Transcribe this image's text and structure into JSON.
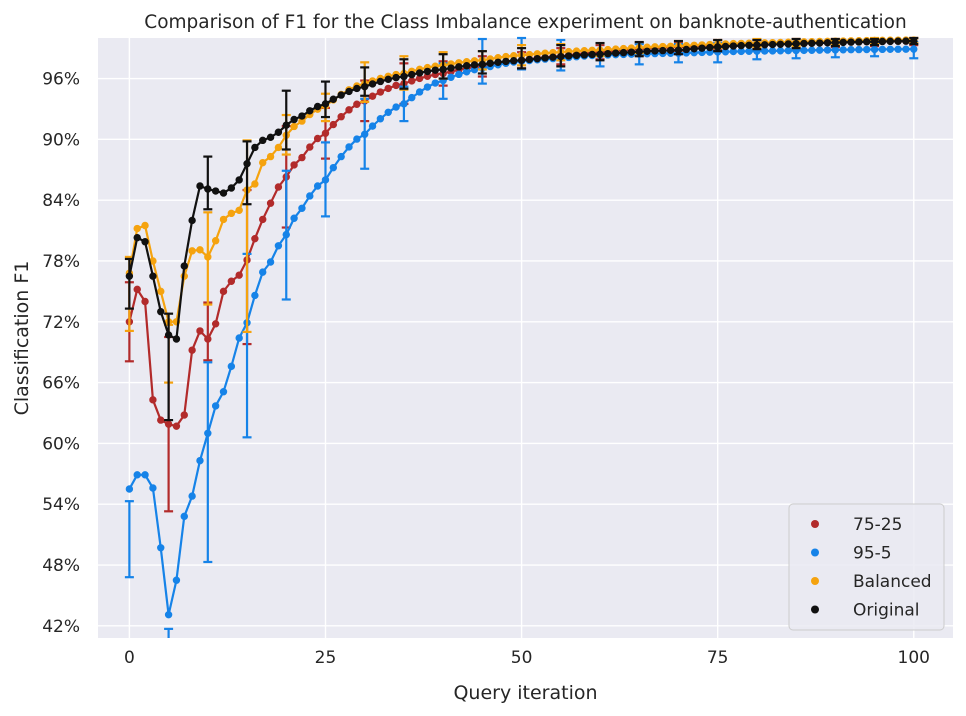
{
  "chart_data": {
    "type": "line",
    "title": "Comparison of F1 for the Class Imbalance experiment on banknote-authentication",
    "xlabel": "Query iteration",
    "ylabel": "Classification F1",
    "xlim": [
      -4,
      105
    ],
    "ylim": [
      40.8,
      100.0
    ],
    "xticks": [
      0,
      25,
      50,
      75,
      100
    ],
    "yticks": [
      42,
      48,
      54,
      60,
      66,
      72,
      78,
      84,
      90,
      96
    ],
    "ytick_suffix": "%",
    "grid": true,
    "background": "#eaeaf2",
    "legend_position": "lower-right",
    "legend": [
      "75-25",
      "95-5",
      "Balanced",
      "Original"
    ],
    "series": [
      {
        "name": "75-25",
        "color": "#b22b2b",
        "anchors": [
          [
            0,
            72.0
          ],
          [
            1,
            75.2
          ],
          [
            2,
            74.0
          ],
          [
            3,
            64.3
          ],
          [
            4,
            62.3
          ],
          [
            5,
            61.9
          ],
          [
            6,
            61.7
          ],
          [
            7,
            62.8
          ],
          [
            8,
            69.2
          ],
          [
            9,
            71.1
          ],
          [
            10,
            70.3
          ],
          [
            11,
            71.8
          ],
          [
            12,
            75.0
          ],
          [
            13,
            76.0
          ],
          [
            14,
            76.6
          ],
          [
            15,
            78.1
          ],
          [
            16,
            80.2
          ],
          [
            17,
            82.1
          ],
          [
            18,
            83.7
          ],
          [
            19,
            85.3
          ],
          [
            20,
            86.3
          ],
          [
            22,
            88.2
          ],
          [
            25,
            90.6
          ],
          [
            30,
            93.8
          ],
          [
            35,
            95.5
          ],
          [
            40,
            96.5
          ],
          [
            45,
            97.2
          ],
          [
            50,
            97.8
          ],
          [
            55,
            98.2
          ],
          [
            60,
            98.6
          ],
          [
            70,
            99.1
          ],
          [
            80,
            99.4
          ],
          [
            100,
            99.7
          ]
        ],
        "errorbars": [
          [
            0,
            68.1,
            75.9
          ],
          [
            5,
            53.3,
            70.5
          ],
          [
            10,
            68.2,
            73.9
          ],
          [
            15,
            69.8,
            85.0
          ],
          [
            20,
            81.3,
            91.3
          ],
          [
            25,
            88.1,
            93.1
          ],
          [
            30,
            91.8,
            95.8
          ],
          [
            35,
            93.5,
            97.5
          ],
          [
            40,
            95.3,
            97.7
          ],
          [
            45,
            96.2,
            98.2
          ],
          [
            50,
            97.0,
            98.6
          ],
          [
            55,
            97.4,
            99.0
          ],
          [
            60,
            97.9,
            99.3
          ],
          [
            65,
            98.3,
            99.5
          ],
          [
            70,
            98.6,
            99.6
          ],
          [
            75,
            98.8,
            99.8
          ],
          [
            80,
            99.0,
            99.8
          ],
          [
            85,
            99.0,
            99.9
          ],
          [
            90,
            99.1,
            99.9
          ],
          [
            95,
            99.2,
            99.9
          ],
          [
            100,
            99.3,
            100
          ]
        ]
      },
      {
        "name": "95-5",
        "color": "#1683e8",
        "anchors": [
          [
            0,
            55.5
          ],
          [
            1,
            56.9
          ],
          [
            2,
            56.9
          ],
          [
            3,
            55.6
          ],
          [
            4,
            49.7
          ],
          [
            5,
            43.1
          ],
          [
            6,
            46.5
          ],
          [
            7,
            52.8
          ],
          [
            8,
            54.8
          ],
          [
            9,
            58.3
          ],
          [
            10,
            61.0
          ],
          [
            11,
            63.7
          ],
          [
            12,
            65.1
          ],
          [
            13,
            67.6
          ],
          [
            14,
            70.4
          ],
          [
            15,
            71.9
          ],
          [
            16,
            74.6
          ],
          [
            17,
            76.9
          ],
          [
            18,
            77.9
          ],
          [
            19,
            79.5
          ],
          [
            20,
            80.6
          ],
          [
            22,
            83.2
          ],
          [
            25,
            86.0
          ],
          [
            30,
            90.5
          ],
          [
            35,
            93.5
          ],
          [
            40,
            95.8
          ],
          [
            45,
            97.0
          ],
          [
            50,
            97.7
          ],
          [
            55,
            98.0
          ],
          [
            60,
            98.3
          ],
          [
            70,
            98.5
          ],
          [
            80,
            98.7
          ],
          [
            100,
            98.9
          ]
        ],
        "errorbars": [
          [
            0,
            46.8,
            54.3
          ],
          [
            5,
            40.5,
            41.7
          ],
          [
            10,
            48.3,
            68.0
          ],
          [
            15,
            60.6,
            78.7
          ],
          [
            20,
            74.2,
            86.9
          ],
          [
            25,
            82.4,
            89.7
          ],
          [
            30,
            87.1,
            94.0
          ],
          [
            35,
            91.8,
            95.2
          ],
          [
            40,
            94.0,
            97.5
          ],
          [
            45,
            95.5,
            99.9
          ],
          [
            50,
            96.9,
            100
          ],
          [
            55,
            96.8,
            99.8
          ],
          [
            60,
            97.2,
            99.5
          ],
          [
            65,
            97.4,
            99.4
          ],
          [
            70,
            97.6,
            99.4
          ],
          [
            75,
            97.6,
            99.5
          ],
          [
            80,
            97.9,
            99.5
          ],
          [
            85,
            98.0,
            99.5
          ],
          [
            90,
            98.1,
            99.6
          ],
          [
            95,
            98.2,
            99.6
          ],
          [
            100,
            98.0,
            99.6
          ]
        ]
      },
      {
        "name": "Balanced",
        "color": "#f5a30f",
        "anchors": [
          [
            0,
            76.8
          ],
          [
            1,
            81.2
          ],
          [
            2,
            81.5
          ],
          [
            3,
            78.0
          ],
          [
            4,
            75.0
          ],
          [
            5,
            72.0
          ],
          [
            6,
            72.0
          ],
          [
            7,
            76.5
          ],
          [
            8,
            79.0
          ],
          [
            9,
            79.1
          ],
          [
            10,
            78.4
          ],
          [
            11,
            80.0
          ],
          [
            12,
            82.1
          ],
          [
            13,
            82.7
          ],
          [
            14,
            83.0
          ],
          [
            15,
            85.0
          ],
          [
            16,
            85.6
          ],
          [
            17,
            87.7
          ],
          [
            18,
            88.3
          ],
          [
            19,
            89.2
          ],
          [
            20,
            90.4
          ],
          [
            22,
            91.8
          ],
          [
            25,
            93.3
          ],
          [
            30,
            95.5
          ],
          [
            35,
            96.5
          ],
          [
            40,
            97.3
          ],
          [
            45,
            97.8
          ],
          [
            50,
            98.3
          ],
          [
            60,
            98.8
          ],
          [
            70,
            99.2
          ],
          [
            80,
            99.5
          ],
          [
            100,
            99.8
          ]
        ],
        "errorbars": [
          [
            0,
            71.1,
            78.4
          ],
          [
            5,
            66.0,
            71.7
          ],
          [
            10,
            73.7,
            82.8
          ],
          [
            15,
            71.0,
            89.9
          ],
          [
            20,
            88.5,
            92.4
          ],
          [
            25,
            91.8,
            94.5
          ],
          [
            30,
            93.7,
            97.6
          ],
          [
            35,
            94.9,
            98.2
          ],
          [
            40,
            96.0,
            98.6
          ],
          [
            45,
            96.9,
            98.7
          ],
          [
            50,
            97.3,
            99.3
          ],
          [
            55,
            97.8,
            99.4
          ],
          [
            60,
            98.2,
            99.5
          ],
          [
            65,
            98.5,
            99.6
          ],
          [
            70,
            98.8,
            99.7
          ],
          [
            75,
            99.0,
            99.8
          ],
          [
            80,
            99.1,
            99.9
          ],
          [
            85,
            99.2,
            99.9
          ],
          [
            90,
            99.3,
            99.9
          ],
          [
            95,
            99.4,
            100
          ],
          [
            100,
            99.5,
            100
          ]
        ]
      },
      {
        "name": "Original",
        "color": "#111111",
        "anchors": [
          [
            0,
            76.5
          ],
          [
            1,
            80.3
          ],
          [
            2,
            79.9
          ],
          [
            3,
            76.5
          ],
          [
            4,
            73.0
          ],
          [
            5,
            70.7
          ],
          [
            6,
            70.3
          ],
          [
            7,
            77.5
          ],
          [
            8,
            82.0
          ],
          [
            9,
            85.4
          ],
          [
            10,
            85.1
          ],
          [
            11,
            84.9
          ],
          [
            12,
            84.7
          ],
          [
            13,
            85.2
          ],
          [
            14,
            86.0
          ],
          [
            15,
            87.6
          ],
          [
            16,
            89.2
          ],
          [
            17,
            89.9
          ],
          [
            18,
            90.2
          ],
          [
            19,
            90.7
          ],
          [
            20,
            91.4
          ],
          [
            22,
            92.3
          ],
          [
            25,
            93.5
          ],
          [
            30,
            95.2
          ],
          [
            35,
            96.2
          ],
          [
            40,
            96.9
          ],
          [
            45,
            97.4
          ],
          [
            50,
            97.8
          ],
          [
            60,
            98.4
          ],
          [
            70,
            98.8
          ],
          [
            80,
            99.3
          ],
          [
            100,
            99.7
          ]
        ],
        "errorbars": [
          [
            0,
            73.3,
            78.2
          ],
          [
            5,
            62.3,
            72.8
          ],
          [
            10,
            83.1,
            88.3
          ],
          [
            15,
            83.6,
            89.8
          ],
          [
            20,
            89.0,
            94.8
          ],
          [
            25,
            92.2,
            95.7
          ],
          [
            30,
            94.3,
            97.1
          ],
          [
            35,
            95.0,
            97.9
          ],
          [
            40,
            96.0,
            98.4
          ],
          [
            45,
            96.5,
            98.7
          ],
          [
            50,
            97.0,
            99.0
          ],
          [
            55,
            97.2,
            99.3
          ],
          [
            60,
            97.8,
            99.5
          ],
          [
            65,
            98.2,
            99.6
          ],
          [
            70,
            98.4,
            99.7
          ],
          [
            75,
            98.7,
            99.8
          ],
          [
            80,
            98.9,
            99.8
          ],
          [
            85,
            99.0,
            99.9
          ],
          [
            90,
            99.2,
            99.9
          ],
          [
            95,
            99.3,
            99.9
          ],
          [
            100,
            99.4,
            100
          ]
        ]
      }
    ]
  }
}
